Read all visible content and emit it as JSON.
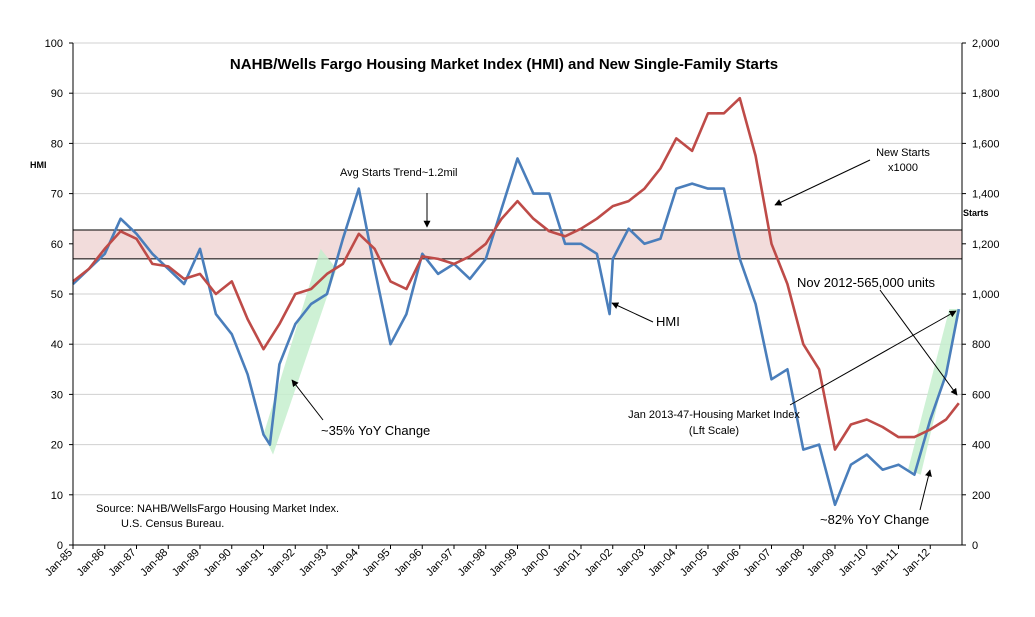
{
  "chart_data": {
    "type": "line",
    "title": "NAHB/Wells Fargo Housing Market Index (HMI) and New Single-Family Starts",
    "y_left_label": "HMI",
    "y_right_label": "Starts",
    "y_left_lim": [
      0,
      100
    ],
    "y_right_lim": [
      0,
      2000
    ],
    "y_left_ticks": [
      "0",
      "10",
      "20",
      "30",
      "40",
      "50",
      "60",
      "70",
      "80",
      "90",
      "100"
    ],
    "y_right_ticks": [
      "0",
      "200",
      "400",
      "600",
      "800",
      "1,000",
      "1,200",
      "1,400",
      "1,600",
      "1,800",
      "2,000"
    ],
    "x_ticks": [
      "Jan-85",
      "Jan-86",
      "Jan-87",
      "Jan-88",
      "Jan-89",
      "Jan-90",
      "Jan-91",
      "Jan-92",
      "Jan-93",
      "Jan-94",
      "Jan-95",
      "Jan-96",
      "Jan-97",
      "Jan-98",
      "Jan-99",
      "Jan-00",
      "Jan-01",
      "Jan-02",
      "Jan-03",
      "Jan-04",
      "Jan-05",
      "Jan-06",
      "Jan-07",
      "Jan-08",
      "Jan-09",
      "Jan-10",
      "Jan-11",
      "Jan-12"
    ],
    "grid": true,
    "band": {
      "label": "Avg Starts Trend~1.2mil",
      "low": 1140,
      "high": 1255,
      "axis": "right",
      "color": "#f2dcdb"
    },
    "series": [
      {
        "name": "HMI",
        "axis": "left",
        "color": "#4a7ebb",
        "x": [
          1985.0,
          1985.5,
          1986.0,
          1986.5,
          1987.0,
          1987.5,
          1988.0,
          1988.5,
          1989.0,
          1989.5,
          1990.0,
          1990.5,
          1991.0,
          1991.2,
          1991.5,
          1992.0,
          1992.5,
          1993.0,
          1993.5,
          1994.0,
          1994.5,
          1995.0,
          1995.5,
          1996.0,
          1996.5,
          1997.0,
          1997.5,
          1998.0,
          1998.5,
          1999.0,
          1999.5,
          2000.0,
          2000.5,
          2001.0,
          2001.5,
          2001.9,
          2002.0,
          2002.5,
          2003.0,
          2003.5,
          2004.0,
          2004.5,
          2005.0,
          2005.5,
          2006.0,
          2006.5,
          2007.0,
          2007.5,
          2008.0,
          2008.5,
          2009.0,
          2009.5,
          2010.0,
          2010.5,
          2011.0,
          2011.5,
          2012.0,
          2012.5,
          2012.9
        ],
        "values": [
          52,
          55,
          58,
          65,
          62,
          58,
          55,
          52,
          59,
          46,
          42,
          34,
          22,
          20,
          36,
          44,
          48,
          50,
          61,
          71,
          55,
          40,
          46,
          58,
          54,
          56,
          53,
          57,
          67,
          77,
          70,
          70,
          60,
          60,
          58,
          46,
          57,
          63,
          60,
          61,
          71,
          72,
          71,
          71,
          57,
          48,
          33,
          35,
          19,
          20,
          8,
          16,
          18,
          15,
          16,
          14,
          25,
          34,
          47
        ]
      },
      {
        "name": "New Starts x1000",
        "axis": "right",
        "color": "#be4b48",
        "x": [
          1985.0,
          1985.5,
          1986.0,
          1986.5,
          1987.0,
          1987.5,
          1988.0,
          1988.5,
          1989.0,
          1989.5,
          1990.0,
          1990.5,
          1991.0,
          1991.5,
          1992.0,
          1992.5,
          1993.0,
          1993.5,
          1994.0,
          1994.5,
          1995.0,
          1995.5,
          1996.0,
          1996.5,
          1997.0,
          1997.5,
          1998.0,
          1998.5,
          1999.0,
          1999.5,
          2000.0,
          2000.5,
          2001.0,
          2001.5,
          2002.0,
          2002.5,
          2003.0,
          2003.5,
          2004.0,
          2004.5,
          2005.0,
          2005.5,
          2006.0,
          2006.5,
          2007.0,
          2007.5,
          2008.0,
          2008.5,
          2009.0,
          2009.5,
          2010.0,
          2010.5,
          2011.0,
          2011.5,
          2012.0,
          2012.5,
          2012.9
        ],
        "values": [
          1050,
          1100,
          1180,
          1250,
          1220,
          1120,
          1110,
          1060,
          1080,
          1000,
          1050,
          900,
          780,
          880,
          1000,
          1020,
          1080,
          1120,
          1240,
          1180,
          1050,
          1020,
          1150,
          1140,
          1120,
          1150,
          1200,
          1300,
          1370,
          1300,
          1250,
          1230,
          1260,
          1300,
          1350,
          1370,
          1420,
          1500,
          1620,
          1570,
          1720,
          1720,
          1780,
          1550,
          1200,
          1040,
          800,
          700,
          380,
          480,
          500,
          470,
          430,
          430,
          460,
          500,
          565
        ]
      }
    ],
    "annotations": {
      "avg_trend": "Avg Starts Trend~1.2mil",
      "new_starts_line1": "New Starts",
      "new_starts_line2": "x1000",
      "hmi_label": "HMI",
      "nov_2012": "Nov 2012-565,000 units",
      "jan_2013_line1": "Jan 2013-47-Housing Market Index",
      "jan_2013_line2": "(Lft Scale)",
      "yoy_35": "~35% YoY Change",
      "yoy_82": "~82% YoY Change",
      "source_line1": "Source: NAHB/WellsFargo Housing Market Index.",
      "source_line2": "U.S. Census Bureau."
    }
  }
}
